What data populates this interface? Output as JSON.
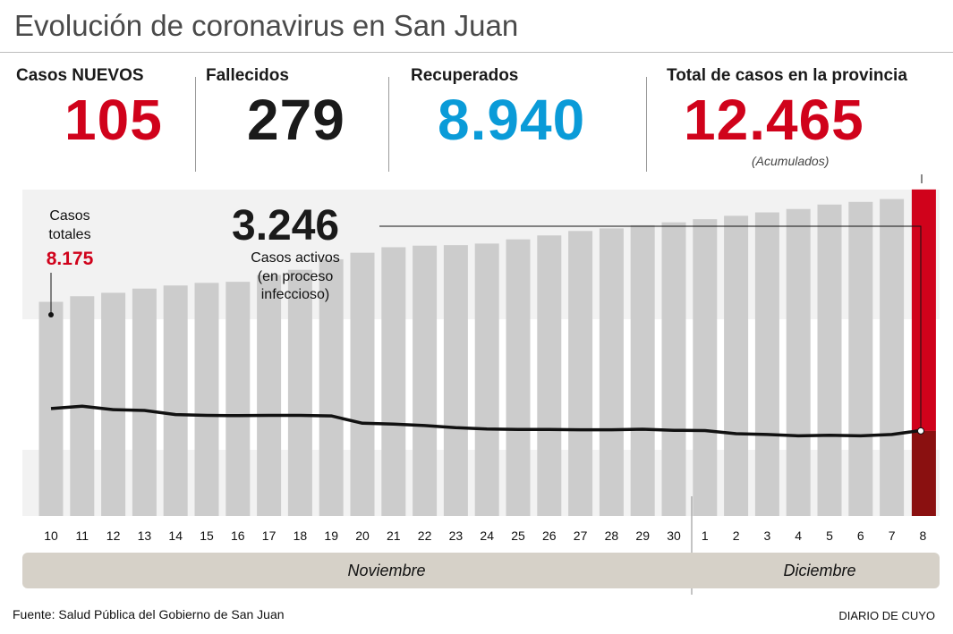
{
  "header": {
    "title": "Evolución de coronavirus en San Juan"
  },
  "stats": {
    "nuevos": {
      "label": "Casos NUEVOS",
      "value": "105"
    },
    "fallecidos": {
      "label": "Fallecidos",
      "value": "279"
    },
    "recuperados": {
      "label": "Recuperados",
      "value": "8.940"
    },
    "total": {
      "label": "Total de casos en la provincia",
      "value": "12.465",
      "note": "(Acumulados)"
    }
  },
  "colors": {
    "red": "#d0021b",
    "blue": "#0a9bd8",
    "dark": "#1a1a1a",
    "bar": "#cccccc",
    "highlight_dark": "#8a1010"
  },
  "annotations": {
    "casos_totales_label_1": "Casos",
    "casos_totales_label_2": "totales",
    "casos_totales_value": "8.175",
    "activos_value": "3.246",
    "activos_label_1": "Casos activos",
    "activos_label_2": "(en proceso",
    "activos_label_3": "infeccioso)"
  },
  "months": [
    "Noviembre",
    "Diciembre"
  ],
  "footer": {
    "source": "Fuente: Salud Pública del Gobierno de San Juan",
    "brand": "DIARIO DE CUYO"
  },
  "chart_data": {
    "type": "bar",
    "categories": [
      "10",
      "11",
      "12",
      "13",
      "14",
      "15",
      "16",
      "17",
      "18",
      "19",
      "20",
      "21",
      "22",
      "23",
      "24",
      "25",
      "26",
      "27",
      "28",
      "29",
      "30",
      "1",
      "2",
      "3",
      "4",
      "5",
      "6",
      "7",
      "8"
    ],
    "series": [
      {
        "name": "Casos totales",
        "values": [
          8175,
          8390,
          8520,
          8680,
          8800,
          8900,
          8940,
          9200,
          9400,
          9800,
          10050,
          10260,
          10320,
          10340,
          10400,
          10560,
          10710,
          10880,
          10980,
          11100,
          11210,
          11330,
          11460,
          11590,
          11720,
          11890,
          11990,
          12100,
          12465
        ]
      },
      {
        "name": "Casos activos",
        "values": [
          4100,
          4190,
          4060,
          4030,
          3870,
          3840,
          3830,
          3840,
          3840,
          3820,
          3540,
          3510,
          3450,
          3370,
          3320,
          3300,
          3300,
          3290,
          3290,
          3310,
          3270,
          3260,
          3140,
          3110,
          3060,
          3080,
          3060,
          3110,
          3246
        ]
      }
    ],
    "ylim": [
      0,
      12700
    ],
    "grid": "banded",
    "highlight_last": true
  }
}
